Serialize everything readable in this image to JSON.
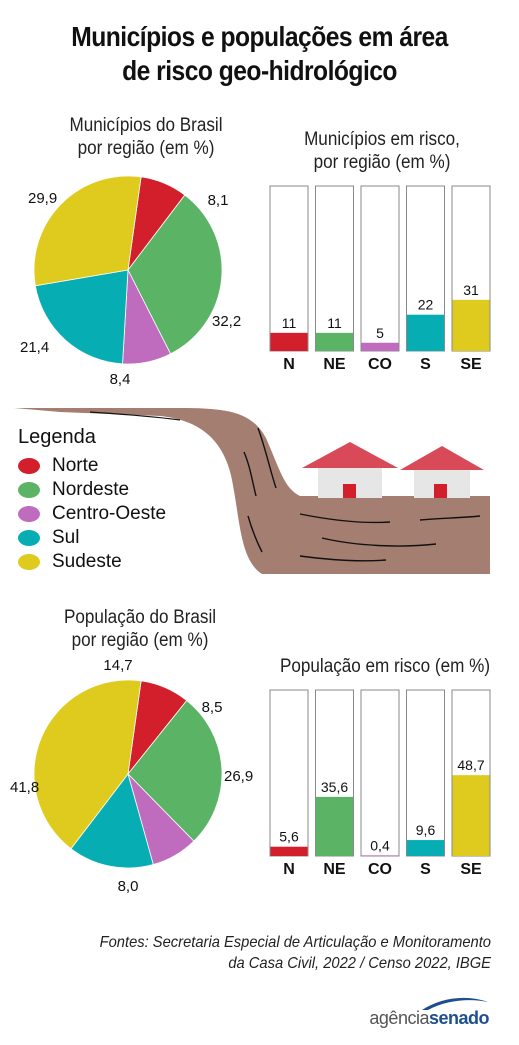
{
  "title_line1": "Municípios e populações em área",
  "title_line2": "de risco geo-hidrológico",
  "legend": {
    "title": "Legenda",
    "items": [
      {
        "label": "Norte",
        "color": "#d21f2b"
      },
      {
        "label": "Nordeste",
        "color": "#5bb466"
      },
      {
        "label": "Centro-Oeste",
        "color": "#bf6cbf"
      },
      {
        "label": "Sul",
        "color": "#06aeb4"
      },
      {
        "label": "Sudeste",
        "color": "#dfcb1e"
      }
    ]
  },
  "chart_data": [
    {
      "type": "pie",
      "title_line1": "Municípios do Brasil",
      "title_line2": "por região (em %)",
      "labels": [
        "Norte",
        "Nordeste",
        "Centro-Oeste",
        "Sul",
        "Sudeste"
      ],
      "values": [
        8.1,
        32.2,
        8.4,
        21.4,
        29.9
      ],
      "value_labels": [
        "8,1",
        "32,2",
        "8,4",
        "21,4",
        "29,9"
      ]
    },
    {
      "type": "bar",
      "title_line1": "Municípios em risco,",
      "title_line2": "por região (em %)",
      "categories": [
        "N",
        "NE",
        "CO",
        "S",
        "SE"
      ],
      "values": [
        11,
        11,
        5,
        22,
        31
      ],
      "value_labels": [
        "11",
        "11",
        "5",
        "22",
        "31"
      ],
      "ylim": [
        0,
        100
      ]
    },
    {
      "type": "pie",
      "title_line1": "População do Brasil",
      "title_line2": "por região (em %)",
      "labels": [
        "Norte",
        "Nordeste",
        "Centro-Oeste",
        "Sul",
        "Sudeste"
      ],
      "values": [
        8.5,
        26.9,
        8.0,
        14.7,
        41.8
      ],
      "value_labels": [
        "8,5",
        "26,9",
        "8,0",
        "14,7",
        "41,8"
      ]
    },
    {
      "type": "bar",
      "title_line1": "População em risco (em %)",
      "title_line2": "",
      "categories": [
        "N",
        "NE",
        "CO",
        "S",
        "SE"
      ],
      "values": [
        5.6,
        35.6,
        0.4,
        9.6,
        48.7
      ],
      "value_labels": [
        "5,6",
        "35,6",
        "0,4",
        "9,6",
        "48,7"
      ],
      "ylim": [
        0,
        100
      ]
    }
  ],
  "footer_line1": "Fontes: Secretaria Especial de Articulação e Monitoramento",
  "footer_line2": "da Casa Civil, 2022 / Censo 2022, IBGE",
  "logo": {
    "part1": "agência",
    "part2": "senado",
    "color1": "#555555",
    "color2": "#1d4f8f"
  }
}
